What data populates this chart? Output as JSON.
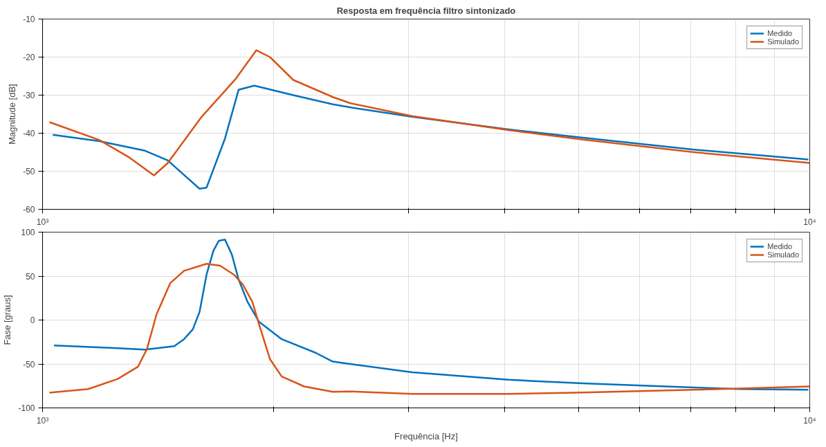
{
  "chart_data": [
    {
      "type": "line",
      "title": "Resposta em frequência filtro sintonizado",
      "ylabel": "Magnitude [dB]",
      "log": "x",
      "grid": true,
      "legend": "top right",
      "line_style": "solid",
      "xlim": [
        1000,
        10000
      ],
      "ylim": [
        -60,
        -10
      ],
      "yticks": [
        -60,
        -50,
        -40,
        -30,
        -20,
        -10
      ],
      "xticks": [
        {
          "value": 1000,
          "label": "10³"
        },
        {
          "value": 2000,
          "label": null
        },
        {
          "value": 3000,
          "label": null
        },
        {
          "value": 4000,
          "label": null
        },
        {
          "value": 5000,
          "label": null
        },
        {
          "value": 6000,
          "label": null
        },
        {
          "value": 7000,
          "label": null
        },
        {
          "value": 8000,
          "label": null
        },
        {
          "value": 9000,
          "label": null
        },
        {
          "value": 10000,
          "label": "10⁴"
        }
      ],
      "series": [
        {
          "name": "Medido",
          "color": "#0072bd",
          "x": [
            1031,
            1186,
            1360,
            1455,
            1602,
            1636,
            1729,
            1801,
            1888,
            2122,
            2390,
            2516,
            3031,
            4048,
            5063,
            7070,
            9959
          ],
          "values": [
            -40.4,
            -42.1,
            -44.6,
            -47.1,
            -54.6,
            -54.3,
            -41.4,
            -28.6,
            -27.5,
            -30,
            -32.4,
            -33.2,
            -35.7,
            -39,
            -41.2,
            -44.3,
            -46.9
          ]
        },
        {
          "name": "Simulado",
          "color": "#d95319",
          "x": [
            1021,
            1186,
            1298,
            1397,
            1455,
            1612,
            1786,
            1900,
            1979,
            2122,
            2390,
            2516,
            3031,
            4048,
            5063,
            7070,
            10000
          ],
          "values": [
            -37.1,
            -41.8,
            -46.4,
            -51.1,
            -47.9,
            -35.7,
            -25.7,
            -18.2,
            -20,
            -26,
            -30.5,
            -32.1,
            -35.5,
            -39.2,
            -41.7,
            -45,
            -47.8
          ]
        }
      ]
    },
    {
      "type": "line",
      "xlabel": "Frequência [Hz]",
      "ylabel": "Fase [graus]",
      "log": "x",
      "grid": true,
      "legend": "top right",
      "line_style": "solid",
      "xlim": [
        1000,
        10000
      ],
      "ylim": [
        -100,
        100
      ],
      "yticks": [
        -100,
        -50,
        0,
        50,
        100
      ],
      "xticks": [
        {
          "value": 1000,
          "label": "10³"
        },
        {
          "value": 2000,
          "label": null
        },
        {
          "value": 3000,
          "label": null
        },
        {
          "value": 4000,
          "label": null
        },
        {
          "value": 5000,
          "label": null
        },
        {
          "value": 6000,
          "label": null
        },
        {
          "value": 7000,
          "label": null
        },
        {
          "value": 8000,
          "label": null
        },
        {
          "value": 9000,
          "label": null
        },
        {
          "value": 10000,
          "label": "10⁴"
        }
      ],
      "series": [
        {
          "name": "Medido",
          "color": "#0072bd",
          "x": [
            1035,
            1228,
            1360,
            1485,
            1529,
            1570,
            1602,
            1636,
            1670,
            1697,
            1729,
            1765,
            1801,
            1850,
            1915,
            2050,
            2271,
            2390,
            2516,
            3031,
            4048,
            5063,
            7070,
            8080,
            9959
          ],
          "values": [
            -28.9,
            -31.7,
            -33.7,
            -29.7,
            -21.8,
            -10.5,
            9.3,
            51.8,
            78.8,
            90.1,
            91.5,
            74.5,
            46.2,
            20.7,
            -2,
            -21.8,
            -37.4,
            -47.3,
            -50,
            -59.5,
            -68,
            -72,
            -76.7,
            -78.6,
            -79.4
          ]
        },
        {
          "name": "Simulado",
          "color": "#d95319",
          "x": [
            1021,
            1147,
            1253,
            1332,
            1368,
            1408,
            1467,
            1529,
            1636,
            1704,
            1775,
            1824,
            1877,
            1915,
            1979,
            2050,
            2193,
            2390,
            2516,
            3031,
            4048,
            5063,
            7070,
            10000
          ],
          "values": [
            -82.7,
            -78.5,
            -67,
            -53,
            -33,
            6.5,
            42,
            56,
            64,
            61.8,
            51.8,
            40.5,
            20.7,
            -4.8,
            -44.5,
            -64.3,
            -75.6,
            -81.7,
            -81.3,
            -84,
            -84,
            -82.4,
            -79.4,
            -75.6
          ]
        }
      ]
    }
  ]
}
